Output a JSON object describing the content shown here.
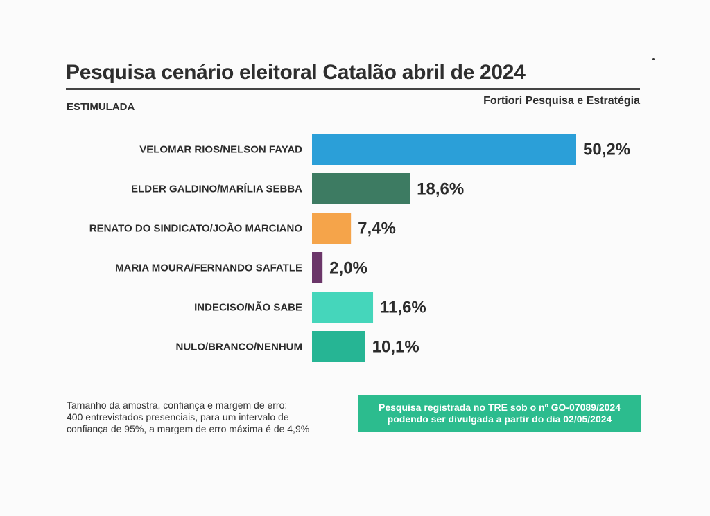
{
  "header": {
    "title": "Pesquisa cenário eleitoral Catalão abril de 2024",
    "subtitle": "ESTIMULADA",
    "source": "Fortiori Pesquisa e Estratégia"
  },
  "chart_data": {
    "type": "bar",
    "orientation": "horizontal",
    "title": "Pesquisa cenário eleitoral Catalão abril de 2024",
    "categories": [
      "VELOMAR RIOS/NELSON FAYAD",
      "ELDER GALDINO/MARÍLIA SEBBA",
      "RENATO DO SINDICATO/JOÃO MARCIANO",
      "MARIA MOURA/FERNANDO SAFATLE",
      "INDECISO/NÃO SABE",
      "NULO/BRANCO/NENHUM"
    ],
    "values": [
      50.2,
      18.6,
      7.4,
      2.0,
      11.6,
      10.1
    ],
    "value_labels": [
      "50,2%",
      "18,6%",
      "7,4%",
      "2,0%",
      "11,6%",
      "10,1%"
    ],
    "colors": [
      "#2b9fd8",
      "#3d7b62",
      "#f5a44a",
      "#6b3669",
      "#45d6bb",
      "#26b594"
    ],
    "xlim": [
      0,
      50.2
    ],
    "grid": false,
    "legend": "none"
  },
  "footer": {
    "note_lines": [
      "Tamanho da amostra, confiança e margem de erro:",
      "400 entrevistados presenciais, para um intervalo de",
      "confiança de 95%, a margem de erro máxima é de 4,9%"
    ],
    "registration_lines": [
      "Pesquisa registrada no TRE sob o nº GO-07089/2024",
      "podendo ser divulgada a partir do dia 02/05/2024"
    ],
    "registration_color": "#2cbc8e"
  }
}
